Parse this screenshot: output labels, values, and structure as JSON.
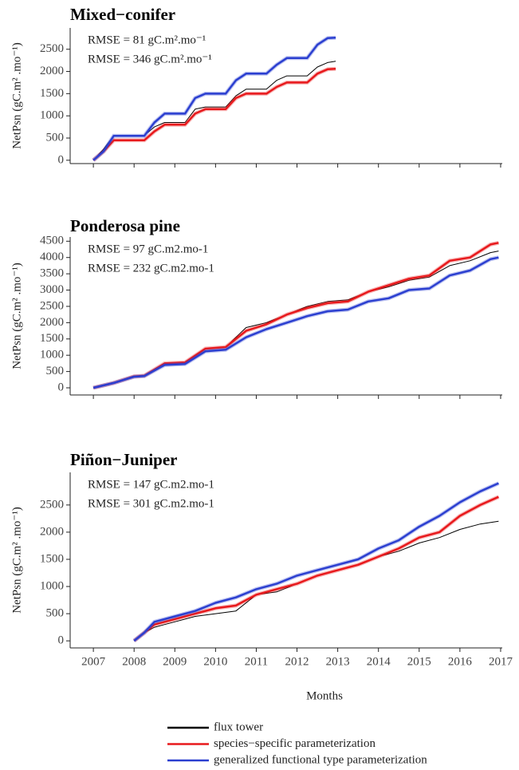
{
  "chart_data": [
    {
      "type": "line",
      "title": "Mixed−conifer",
      "ylabel": "NetPsn (gC.m² .mo⁻¹)",
      "annotations": [
        {
          "text": "RMSE = 81 gC.m².mo⁻¹",
          "color": "#e8191c"
        },
        {
          "text": "RMSE = 346 gC.m².mo⁻¹",
          "color": "#2b3fd0"
        }
      ],
      "x": [
        2007.0,
        2007.25,
        2007.5,
        2008.25,
        2008.5,
        2008.75,
        2009.25,
        2009.5,
        2009.75,
        2010.25,
        2010.5,
        2010.75,
        2011.25,
        2011.5,
        2011.75,
        2012.25,
        2012.5,
        2012.75,
        2012.95
      ],
      "series": [
        {
          "color": "#000000",
          "values": [
            0,
            250,
            560,
            560,
            750,
            850,
            850,
            1150,
            1200,
            1200,
            1450,
            1600,
            1600,
            1800,
            1900,
            1900,
            2100,
            2200,
            2230
          ]
        },
        {
          "color": "#e8191c",
          "values": [
            0,
            200,
            450,
            450,
            650,
            800,
            800,
            1050,
            1150,
            1150,
            1400,
            1500,
            1500,
            1650,
            1750,
            1750,
            1950,
            2050,
            2060
          ]
        },
        {
          "color": "#2b3fd0",
          "values": [
            0,
            200,
            550,
            550,
            850,
            1050,
            1050,
            1400,
            1500,
            1500,
            1800,
            1950,
            1950,
            2150,
            2300,
            2300,
            2600,
            2750,
            2760
          ]
        }
      ],
      "xlim": [
        2006.43,
        2017.04
      ],
      "xticks": [
        2007,
        2008,
        2009,
        2010,
        2011,
        2012,
        2013,
        2014,
        2015,
        2016,
        2017
      ],
      "ylim": [
        -75,
        2980
      ],
      "yticks": [
        0,
        500,
        1000,
        1500,
        2000,
        2500
      ]
    },
    {
      "type": "line",
      "title": "Ponderosa pine",
      "ylabel": "NetPsn (gC.m² .mo⁻¹)",
      "annotations": [
        {
          "text": "RMSE = 97 gC.m2.mo-1",
          "color": "#e8191c"
        },
        {
          "text": "RMSE = 232 gC.m2.mo-1",
          "color": "#2b3fd0"
        }
      ],
      "x": [
        2007.0,
        2007.5,
        2008.0,
        2008.25,
        2008.75,
        2009.25,
        2009.75,
        2010.25,
        2010.75,
        2011.25,
        2011.75,
        2012.25,
        2012.75,
        2013.25,
        2013.75,
        2014.25,
        2014.75,
        2015.25,
        2015.75,
        2016.25,
        2016.75,
        2016.95
      ],
      "series": [
        {
          "color": "#000000",
          "values": [
            0,
            150,
            350,
            370,
            750,
            780,
            1200,
            1250,
            1850,
            2000,
            2250,
            2500,
            2650,
            2700,
            2950,
            3100,
            3300,
            3400,
            3750,
            3900,
            4150,
            4200
          ]
        },
        {
          "color": "#e8191c",
          "values": [
            0,
            150,
            350,
            370,
            750,
            780,
            1200,
            1250,
            1750,
            1950,
            2250,
            2450,
            2600,
            2650,
            2950,
            3150,
            3350,
            3450,
            3900,
            4000,
            4400,
            4450
          ]
        },
        {
          "color": "#2b3fd0",
          "values": [
            0,
            150,
            340,
            360,
            700,
            730,
            1120,
            1170,
            1550,
            1800,
            2000,
            2200,
            2350,
            2400,
            2650,
            2750,
            3000,
            3050,
            3450,
            3600,
            3950,
            4000
          ]
        }
      ],
      "xlim": [
        2006.43,
        2017.04
      ],
      "xticks": [
        2007,
        2008,
        2009,
        2010,
        2011,
        2012,
        2013,
        2014,
        2015,
        2016,
        2017
      ],
      "ylim": [
        -220,
        4630
      ],
      "yticks": [
        0,
        500,
        1000,
        1500,
        2000,
        2500,
        3000,
        3500,
        4000,
        4500
      ]
    },
    {
      "type": "line",
      "title": "Piñon−Juniper",
      "ylabel": "NetPsn (gC.m² .mo⁻¹)",
      "xlabel": "Months",
      "annotations": [
        {
          "text": "RMSE = 147 gC.m2.mo-1",
          "color": "#e8191c"
        },
        {
          "text": "RMSE = 301 gC.m2.mo-1",
          "color": "#2b3fd0"
        }
      ],
      "x": [
        2008.0,
        2008.25,
        2008.5,
        2008.75,
        2009.0,
        2009.5,
        2010.0,
        2010.5,
        2011.0,
        2011.5,
        2012.0,
        2012.5,
        2013.0,
        2013.5,
        2014.0,
        2014.5,
        2015.0,
        2015.5,
        2016.0,
        2016.5,
        2016.95
      ],
      "series": [
        {
          "name": "flux tower",
          "color": "#000000",
          "values": [
            0,
            150,
            250,
            300,
            350,
            450,
            500,
            550,
            850,
            900,
            1050,
            1200,
            1300,
            1400,
            1550,
            1650,
            1800,
            1900,
            2050,
            2150,
            2200
          ]
        },
        {
          "name": "species−specific parameterization",
          "color": "#e8191c",
          "values": [
            0,
            150,
            300,
            350,
            400,
            500,
            600,
            650,
            850,
            950,
            1050,
            1200,
            1300,
            1400,
            1550,
            1700,
            1900,
            2000,
            2300,
            2500,
            2650
          ]
        },
        {
          "name": "generalized functional type parameterization",
          "color": "#2b3fd0",
          "values": [
            0,
            150,
            350,
            400,
            450,
            550,
            700,
            800,
            950,
            1050,
            1200,
            1300,
            1400,
            1500,
            1700,
            1850,
            2100,
            2300,
            2550,
            2750,
            2900
          ]
        }
      ],
      "xlim": [
        2006.43,
        2017.04
      ],
      "xticks": [
        2007,
        2008,
        2009,
        2010,
        2011,
        2012,
        2013,
        2014,
        2015,
        2016,
        2017
      ],
      "ylim": [
        -130,
        3100
      ],
      "yticks": [
        0,
        500,
        1000,
        1500,
        2000,
        2500
      ]
    }
  ]
}
